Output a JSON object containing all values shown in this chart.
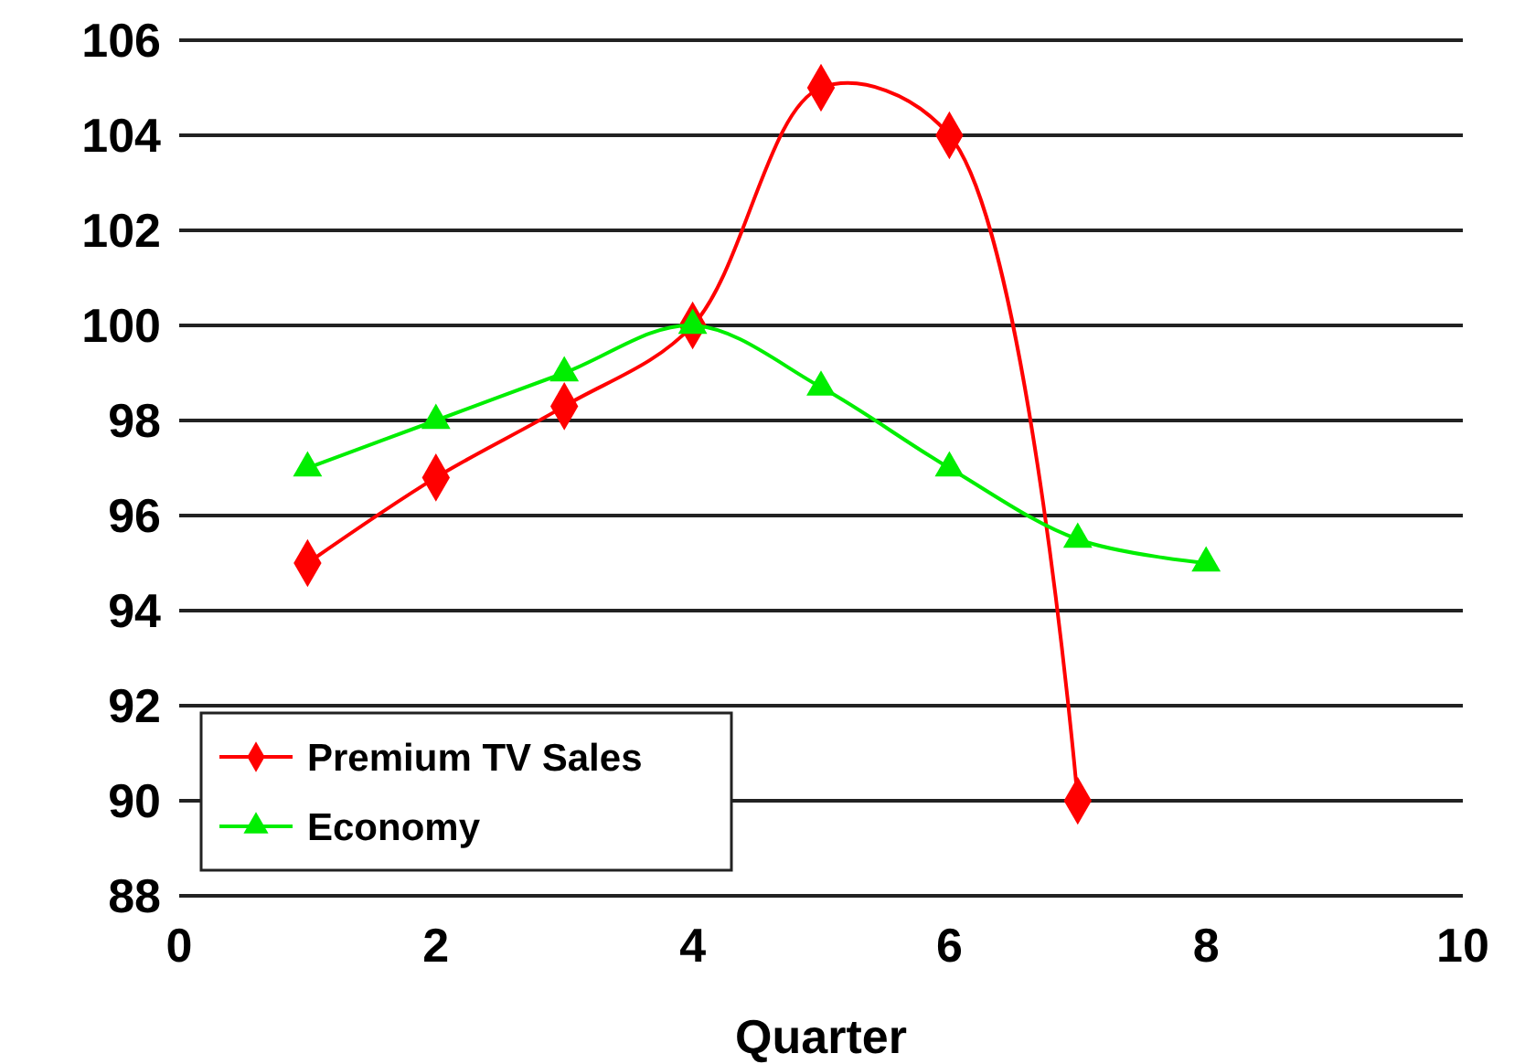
{
  "chart_data": {
    "type": "line",
    "xlabel": "Quarter",
    "xlim": [
      0,
      10
    ],
    "xticks": [
      0,
      2,
      4,
      6,
      8,
      10
    ],
    "ylim": [
      88,
      106
    ],
    "yticks": [
      88,
      90,
      92,
      94,
      96,
      98,
      100,
      102,
      104,
      106
    ],
    "grid": "y",
    "legend": "bottom left",
    "series": [
      {
        "name": "Premium TV Sales",
        "color": "#ff0000",
        "marker": "diamond",
        "x": [
          1,
          2,
          3,
          4,
          5,
          6,
          7
        ],
        "values": [
          95,
          96.8,
          98.3,
          100,
          105,
          104,
          90
        ]
      },
      {
        "name": "Economy",
        "color": "#00ee00",
        "marker": "triangle",
        "x": [
          1,
          2,
          3,
          4,
          5,
          6,
          7,
          8
        ],
        "values": [
          97,
          98,
          99,
          100,
          98.7,
          97,
          95.5,
          95
        ]
      }
    ]
  }
}
